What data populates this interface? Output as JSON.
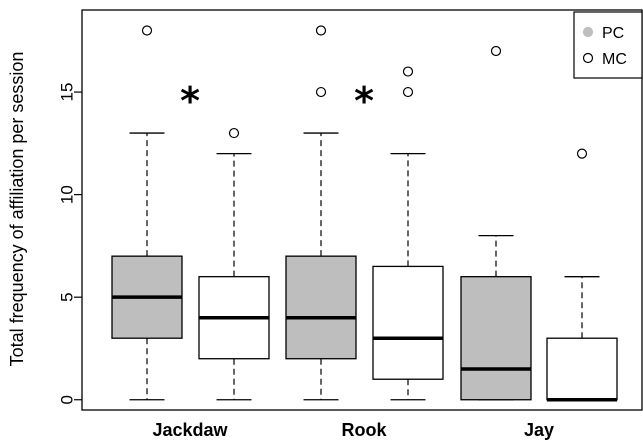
{
  "chart_data": {
    "type": "boxplot",
    "ylabel": "Total frequency of affiliation per session",
    "ylim": [
      -0.5,
      19
    ],
    "y_ticks": [
      0,
      5,
      10,
      15
    ],
    "categories": [
      "Jackdaw",
      "Rook",
      "Jay"
    ],
    "legend": {
      "placement": "top-right",
      "entries": [
        {
          "label": "PC",
          "marker": "filled-circle",
          "color": "#bebebe"
        },
        {
          "label": "MC",
          "marker": "open-circle",
          "color": "#ffffff"
        }
      ]
    },
    "boxes": [
      {
        "category": "Jackdaw",
        "series": "PC",
        "min": 0,
        "q1": 3,
        "median": 5,
        "q3": 7,
        "max": 13,
        "outliers": [
          18
        ],
        "fill": "#bebebe"
      },
      {
        "category": "Jackdaw",
        "series": "MC",
        "min": 0,
        "q1": 2,
        "median": 4,
        "q3": 6,
        "max": 12,
        "outliers": [
          13
        ],
        "fill": "#ffffff"
      },
      {
        "category": "Rook",
        "series": "PC",
        "min": 0,
        "q1": 2,
        "median": 4,
        "q3": 7,
        "max": 13,
        "outliers": [
          15,
          18
        ],
        "fill": "#bebebe"
      },
      {
        "category": "Rook",
        "series": "MC",
        "min": 0,
        "q1": 1,
        "median": 3,
        "q3": 6.5,
        "max": 12,
        "outliers": [
          15,
          16
        ],
        "fill": "#ffffff"
      },
      {
        "category": "Jay",
        "series": "PC",
        "min": 0,
        "q1": 0,
        "median": 1.5,
        "q3": 6,
        "max": 8,
        "outliers": [
          17
        ],
        "fill": "#bebebe"
      },
      {
        "category": "Jay",
        "series": "MC",
        "min": 0,
        "q1": 0,
        "median": 0,
        "q3": 3,
        "max": 6,
        "outliers": [
          12
        ],
        "fill": "#ffffff"
      }
    ],
    "annotations": [
      {
        "text": "*",
        "category": "Jackdaw",
        "y": 15
      },
      {
        "text": "*",
        "category": "Rook",
        "y": 15
      }
    ]
  }
}
